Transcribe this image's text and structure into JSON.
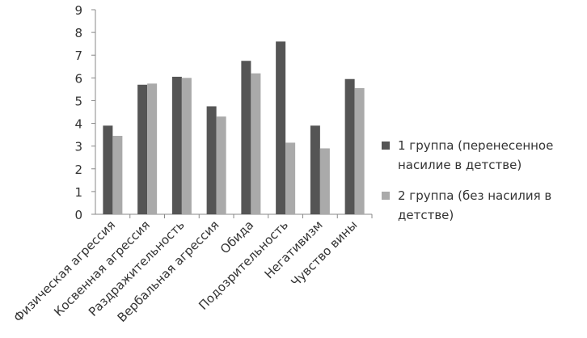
{
  "chart_data": {
    "type": "bar",
    "categories": [
      "Физическая агрессия",
      "Косвенная агрессия",
      "Раздражительность",
      "Вербальная агрессия",
      "Обида",
      "Подозрительность",
      "Негативизм",
      "Чувство вины"
    ],
    "series": [
      {
        "name": "1 группа (перенесенное насилие в детстве)",
        "color": "#555555",
        "values": [
          3.9,
          5.7,
          6.05,
          4.75,
          6.75,
          7.6,
          3.9,
          5.95
        ]
      },
      {
        "name": "2 группа (без насилия в детстве)",
        "color": "#aaaaaa",
        "values": [
          3.45,
          5.75,
          6.0,
          4.3,
          6.2,
          3.15,
          2.9,
          5.55
        ]
      }
    ],
    "ylim": [
      0,
      9
    ],
    "yticks": [
      0,
      1,
      2,
      3,
      4,
      5,
      6,
      7,
      8,
      9
    ],
    "grid": false
  }
}
